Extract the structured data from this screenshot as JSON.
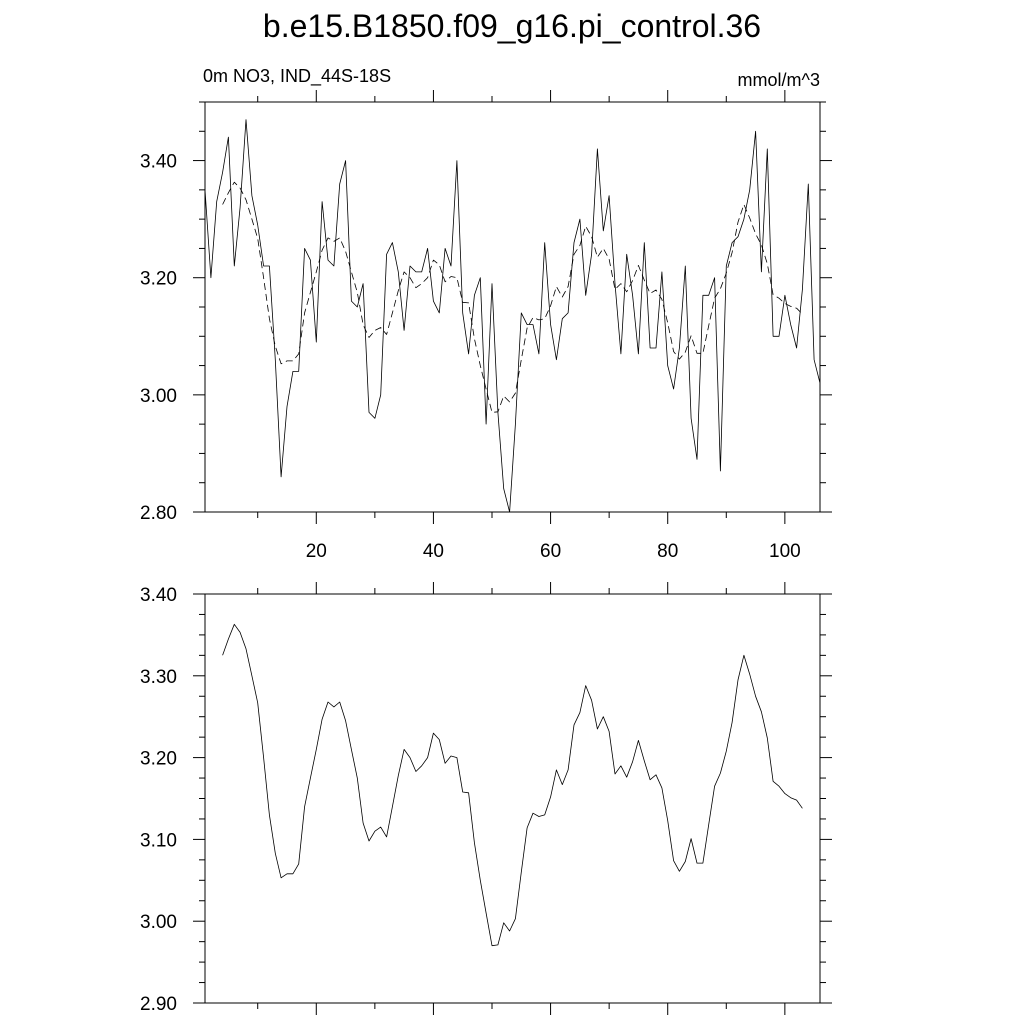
{
  "title": "b.e15.B1850.f09_g16.pi_control.36",
  "subtitle_left": "0m NO3, IND_44S-18S",
  "subtitle_right": "mmol/m^3",
  "chart_data": [
    {
      "type": "line",
      "xlim": [
        1,
        106
      ],
      "ylim": [
        2.8,
        3.5
      ],
      "xticks": [
        20,
        40,
        60,
        80,
        100
      ],
      "xtick_labels": [
        "20",
        "40",
        "60",
        "80",
        "100"
      ],
      "yticks": [
        2.8,
        3.0,
        3.2,
        3.4
      ],
      "ytick_labels": [
        "2.80",
        "3.00",
        "3.20",
        "3.40"
      ],
      "grid": false,
      "series": [
        {
          "style": "solid",
          "x": [
            1,
            2,
            3,
            4,
            5,
            6,
            7,
            8,
            9,
            10,
            11,
            12,
            13,
            14,
            15,
            16,
            17,
            18,
            19,
            20,
            21,
            22,
            23,
            24,
            25,
            26,
            27,
            28,
            29,
            30,
            31,
            32,
            33,
            34,
            35,
            36,
            37,
            38,
            39,
            40,
            41,
            42,
            43,
            44,
            45,
            46,
            47,
            48,
            49,
            50,
            51,
            52,
            53,
            54,
            55,
            56,
            57,
            58,
            59,
            60,
            61,
            62,
            63,
            64,
            65,
            66,
            67,
            68,
            69,
            70,
            71,
            72,
            73,
            74,
            75,
            76,
            77,
            78,
            79,
            80,
            81,
            82,
            83,
            84,
            85,
            86,
            87,
            88,
            89,
            90,
            91,
            92,
            93,
            94,
            95,
            96,
            97,
            98,
            99,
            100,
            101,
            102,
            103,
            104,
            105,
            106
          ],
          "y": [
            3.35,
            3.2,
            3.33,
            3.38,
            3.44,
            3.22,
            3.32,
            3.47,
            3.34,
            3.29,
            3.22,
            3.22,
            3.06,
            2.86,
            2.98,
            3.04,
            3.04,
            3.25,
            3.23,
            3.09,
            3.33,
            3.23,
            3.22,
            3.36,
            3.4,
            3.16,
            3.15,
            3.19,
            2.97,
            2.96,
            3.0,
            3.24,
            3.26,
            3.21,
            3.11,
            3.22,
            3.21,
            3.21,
            3.25,
            3.16,
            3.14,
            3.25,
            3.22,
            3.4,
            3.14,
            3.07,
            3.17,
            3.2,
            2.95,
            3.19,
            2.97,
            2.84,
            2.8,
            2.95,
            3.14,
            3.12,
            3.12,
            3.07,
            3.26,
            3.12,
            3.06,
            3.13,
            3.14,
            3.26,
            3.3,
            3.17,
            3.24,
            3.42,
            3.28,
            3.34,
            3.19,
            3.07,
            3.24,
            3.17,
            3.07,
            3.26,
            3.08,
            3.08,
            3.21,
            3.05,
            3.01,
            3.08,
            3.22,
            2.96,
            2.89,
            3.17,
            3.17,
            3.2,
            2.87,
            3.22,
            3.26,
            3.27,
            3.3,
            3.35,
            3.45,
            3.21,
            3.42,
            3.1,
            3.1,
            3.17,
            3.12,
            3.08,
            3.18,
            3.36,
            3.06,
            3.02
          ]
        },
        {
          "style": "dashed",
          "x": [
            4,
            5,
            6,
            7,
            8,
            9,
            10,
            11,
            12,
            13,
            14,
            15,
            16,
            17,
            18,
            19,
            20,
            21,
            22,
            23,
            24,
            25,
            26,
            27,
            28,
            29,
            30,
            31,
            32,
            33,
            34,
            35,
            36,
            37,
            38,
            39,
            40,
            41,
            42,
            43,
            44,
            45,
            46,
            47,
            48,
            49,
            50,
            51,
            52,
            53,
            54,
            55,
            56,
            57,
            58,
            59,
            60,
            61,
            62,
            63,
            64,
            65,
            66,
            67,
            68,
            69,
            70,
            71,
            72,
            73,
            74,
            75,
            76,
            77,
            78,
            79,
            80,
            81,
            82,
            83,
            84,
            85,
            86,
            87,
            88,
            89,
            90,
            91,
            92,
            93,
            94,
            95,
            96,
            97,
            98,
            99,
            100,
            101,
            102,
            103
          ],
          "y": [
            3.325,
            3.345,
            3.363,
            3.353,
            3.333,
            3.3,
            3.267,
            3.2,
            3.13,
            3.083,
            3.053,
            3.058,
            3.058,
            3.07,
            3.14,
            3.175,
            3.21,
            3.247,
            3.268,
            3.262,
            3.268,
            3.245,
            3.21,
            3.175,
            3.12,
            3.098,
            3.11,
            3.115,
            3.103,
            3.14,
            3.178,
            3.21,
            3.2,
            3.183,
            3.19,
            3.2,
            3.23,
            3.222,
            3.193,
            3.202,
            3.2,
            3.158,
            3.157,
            3.096,
            3.05,
            3.01,
            2.97,
            2.971,
            2.998,
            2.988,
            3.003,
            3.06,
            3.114,
            3.132,
            3.128,
            3.13,
            3.152,
            3.185,
            3.167,
            3.185,
            3.24,
            3.255,
            3.288,
            3.27,
            3.235,
            3.25,
            3.232,
            3.18,
            3.19,
            3.176,
            3.195,
            3.221,
            3.196,
            3.173,
            3.179,
            3.163,
            3.123,
            3.074,
            3.061,
            3.073,
            3.101,
            3.071,
            3.071,
            3.118,
            3.165,
            3.181,
            3.208,
            3.243,
            3.295,
            3.325,
            3.302,
            3.275,
            3.256,
            3.224,
            3.171,
            3.165,
            3.156,
            3.151,
            3.148,
            3.138
          ]
        }
      ]
    },
    {
      "type": "line",
      "xlim": [
        1,
        106
      ],
      "ylim": [
        2.9,
        3.4
      ],
      "yticks": [
        2.9,
        3.0,
        3.1,
        3.2,
        3.3,
        3.4
      ],
      "ytick_labels": [
        "2.90",
        "3.00",
        "3.10",
        "3.20",
        "3.30",
        "3.40"
      ],
      "grid": false,
      "series": [
        {
          "style": "solid",
          "x": [
            4,
            5,
            6,
            7,
            8,
            9,
            10,
            11,
            12,
            13,
            14,
            15,
            16,
            17,
            18,
            19,
            20,
            21,
            22,
            23,
            24,
            25,
            26,
            27,
            28,
            29,
            30,
            31,
            32,
            33,
            34,
            35,
            36,
            37,
            38,
            39,
            40,
            41,
            42,
            43,
            44,
            45,
            46,
            47,
            48,
            49,
            50,
            51,
            52,
            53,
            54,
            55,
            56,
            57,
            58,
            59,
            60,
            61,
            62,
            63,
            64,
            65,
            66,
            67,
            68,
            69,
            70,
            71,
            72,
            73,
            74,
            75,
            76,
            77,
            78,
            79,
            80,
            81,
            82,
            83,
            84,
            85,
            86,
            87,
            88,
            89,
            90,
            91,
            92,
            93,
            94,
            95,
            96,
            97,
            98,
            99,
            100,
            101,
            102,
            103
          ],
          "y": [
            3.325,
            3.345,
            3.363,
            3.353,
            3.333,
            3.3,
            3.267,
            3.2,
            3.13,
            3.083,
            3.053,
            3.058,
            3.058,
            3.07,
            3.14,
            3.175,
            3.21,
            3.247,
            3.268,
            3.262,
            3.268,
            3.245,
            3.21,
            3.175,
            3.12,
            3.098,
            3.11,
            3.115,
            3.103,
            3.14,
            3.178,
            3.21,
            3.2,
            3.183,
            3.19,
            3.2,
            3.23,
            3.222,
            3.193,
            3.202,
            3.2,
            3.158,
            3.157,
            3.096,
            3.05,
            3.01,
            2.97,
            2.971,
            2.998,
            2.988,
            3.003,
            3.06,
            3.114,
            3.132,
            3.128,
            3.13,
            3.152,
            3.185,
            3.167,
            3.185,
            3.24,
            3.255,
            3.288,
            3.27,
            3.235,
            3.25,
            3.232,
            3.18,
            3.19,
            3.176,
            3.195,
            3.221,
            3.196,
            3.173,
            3.179,
            3.163,
            3.123,
            3.074,
            3.061,
            3.073,
            3.101,
            3.071,
            3.071,
            3.118,
            3.165,
            3.181,
            3.208,
            3.243,
            3.295,
            3.325,
            3.302,
            3.275,
            3.256,
            3.224,
            3.171,
            3.165,
            3.156,
            3.151,
            3.148,
            3.138
          ]
        }
      ]
    }
  ]
}
